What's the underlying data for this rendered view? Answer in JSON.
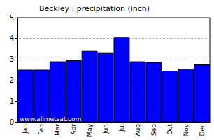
{
  "chart_data": {
    "type": "bar",
    "title": "Beckley : precipitation (inch)",
    "categories": [
      "Jan",
      "Feb",
      "Mar",
      "Apr",
      "May",
      "Jun",
      "Jul",
      "Aug",
      "Sep",
      "Oct",
      "Nov",
      "Dec"
    ],
    "values": [
      2.5,
      2.5,
      2.9,
      2.95,
      3.4,
      3.3,
      4.05,
      2.9,
      2.85,
      2.45,
      2.55,
      2.75
    ],
    "color": "#0000ff",
    "ylim": [
      0,
      5
    ],
    "yticks": [
      0,
      1,
      2,
      3,
      4,
      5
    ],
    "grid": true,
    "annotations": [
      "www.allmetsat.com"
    ]
  }
}
